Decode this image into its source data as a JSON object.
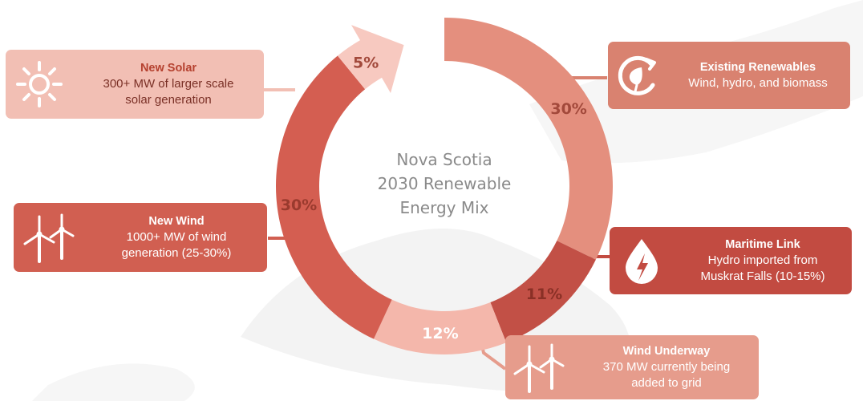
{
  "center_title": [
    "Nova Scotia",
    "2030 Renewable",
    "Energy Mix"
  ],
  "colors": {
    "existing": "#e48f7e",
    "maritime": "#c25046",
    "underway": "#f4b7ab",
    "wind": "#d45e51",
    "solar": "#f7c9c0",
    "card_existing": "#d98270",
    "card_maritime": "#c24b41",
    "card_wind_underway": "#e69c8c",
    "card_new_wind": "#d15f51",
    "card_new_solar": "#f2bfb4",
    "solar_title": "#b5412f",
    "solar_text": "#7a3026"
  },
  "chart_data": {
    "type": "pie",
    "title": "Nova Scotia 2030 Renewable Energy Mix",
    "slices": [
      {
        "label": "Existing Renewables",
        "value": 30,
        "display": "30%"
      },
      {
        "label": "Maritime Link",
        "value": 11,
        "display": "11%"
      },
      {
        "label": "Wind Underway",
        "value": 12,
        "display": "12%"
      },
      {
        "label": "New Wind",
        "value": 30,
        "display": "30%"
      },
      {
        "label": "New Solar",
        "value": 5,
        "display": "5%"
      }
    ]
  },
  "cards": {
    "existing": {
      "title": "Existing Renewables",
      "desc": [
        "Wind, hydro, and biomass"
      ],
      "icon": "renewable-leaf-plug-icon"
    },
    "maritime": {
      "title": "Maritime Link",
      "desc": [
        "Hydro imported from",
        "Muskrat Falls (10-15%)"
      ],
      "icon": "water-drop-lightning-icon"
    },
    "wind_underway": {
      "title": "Wind Underway",
      "desc": [
        "370 MW currently being",
        "added to grid"
      ],
      "icon": "wind-turbines-icon"
    },
    "new_wind": {
      "title": "New Wind",
      "desc": [
        "1000+ MW of wind",
        "generation (25-30%)"
      ],
      "icon": "wind-turbines-icon"
    },
    "new_solar": {
      "title": "New Solar",
      "desc": [
        "300+ MW of larger scale",
        "solar generation"
      ],
      "icon": "sun-icon"
    }
  }
}
